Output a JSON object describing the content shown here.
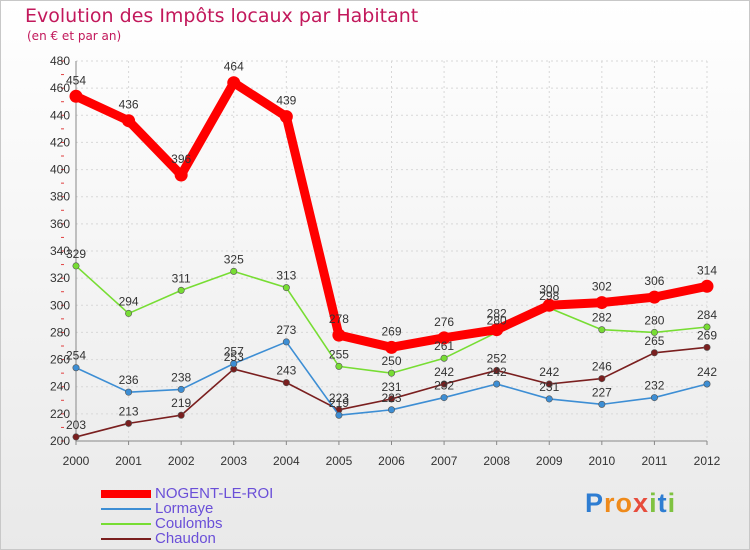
{
  "chart_data": {
    "type": "line",
    "title": "Evolution des Impôts locaux par Habitant",
    "subtitle": "(en € et par an)",
    "xlabel": "",
    "ylabel": "",
    "ylim": [
      200,
      480
    ],
    "y_ticks": [
      200,
      220,
      240,
      260,
      280,
      300,
      320,
      340,
      360,
      380,
      400,
      420,
      440,
      460,
      480
    ],
    "grid": true,
    "categories": [
      "2000",
      "2001",
      "2002",
      "2003",
      "2004",
      "2005",
      "2006",
      "2007",
      "2008",
      "2009",
      "2010",
      "2011",
      "2012"
    ],
    "series": [
      {
        "name": "NOGENT-LE-ROI",
        "color": "#ff0000",
        "values": [
          454,
          436,
          396,
          464,
          439,
          278,
          269,
          276,
          282,
          300,
          302,
          306,
          314
        ]
      },
      {
        "name": "Lormaye",
        "color": "#3d8ed4",
        "values": [
          254,
          236,
          238,
          257,
          273,
          219,
          223,
          232,
          242,
          231,
          227,
          232,
          242
        ]
      },
      {
        "name": "Coulombs",
        "color": "#77dd33",
        "values": [
          329,
          294,
          311,
          325,
          313,
          255,
          250,
          261,
          280,
          298,
          282,
          280,
          284
        ]
      },
      {
        "name": "Chaudon",
        "color": "#7a1f1f",
        "values": [
          203,
          213,
          219,
          253,
          243,
          223,
          231,
          242,
          252,
          242,
          246,
          265,
          269
        ]
      }
    ],
    "legend_position": "bottom-left"
  },
  "logo": {
    "text": "Proxiti",
    "letters": [
      "P",
      "r",
      "o",
      "x",
      "i",
      "t",
      "i"
    ],
    "colors": [
      "#2e7dd2",
      "#ef8a1a",
      "#ef8a1a",
      "#e74c3c",
      "#7fc241",
      "#2e7dd2",
      "#7fc241"
    ]
  }
}
